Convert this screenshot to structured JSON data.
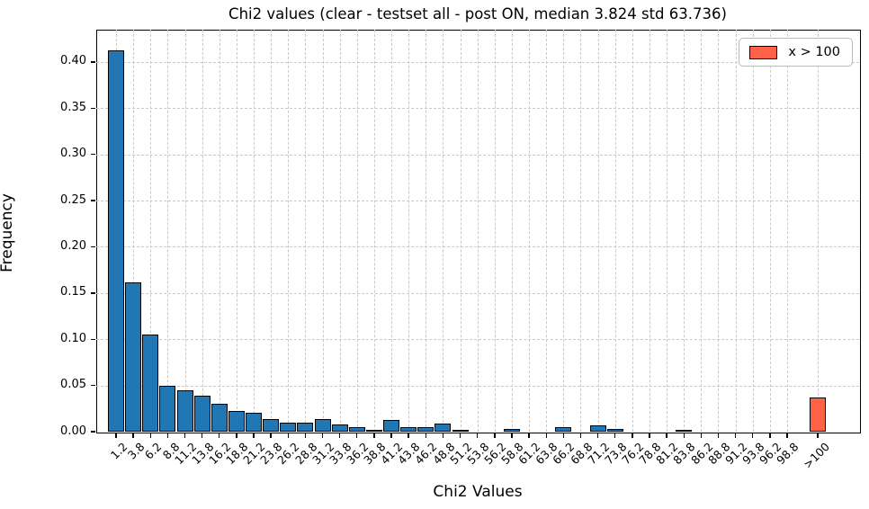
{
  "chart_data": {
    "type": "bar",
    "subtype": "histogram",
    "title": "Chi2 values (clear - testset all - post ON, median 3.824 std 63.736)",
    "xlabel": "Chi2 Values",
    "ylabel": "Frequency",
    "categories": [
      "1.2",
      "3.8",
      "6.2",
      "8.8",
      "11.2",
      "13.8",
      "16.2",
      "18.8",
      "21.2",
      "23.8",
      "26.2",
      "28.8",
      "31.2",
      "33.8",
      "36.2",
      "38.8",
      "41.2",
      "43.8",
      "46.2",
      "48.8",
      "51.2",
      "53.8",
      "56.2",
      "58.8",
      "61.2",
      "63.8",
      "66.2",
      "68.8",
      "71.2",
      "73.8",
      "76.2",
      "78.8",
      "81.2",
      "83.8",
      "86.2",
      "88.8",
      "91.2",
      "93.8",
      "96.2",
      "98.8",
      ">100"
    ],
    "values": [
      0.413,
      0.162,
      0.105,
      0.05,
      0.045,
      0.039,
      0.03,
      0.022,
      0.02,
      0.014,
      0.01,
      0.01,
      0.014,
      0.008,
      0.005,
      0.002,
      0.013,
      0.005,
      0.005,
      0.009,
      0.002,
      0,
      0,
      0.003,
      0,
      0,
      0.005,
      0,
      0.007,
      0.003,
      0,
      0,
      0,
      0.002,
      0,
      0,
      0,
      0,
      0,
      0,
      0.037
    ],
    "ylim": [
      0,
      0.435
    ],
    "yticks": [
      0.0,
      0.05,
      0.1,
      0.15,
      0.2,
      0.25,
      0.3,
      0.35,
      0.4
    ],
    "grid": true,
    "legend_position": "upper right",
    "legend": {
      "label": "x > 100"
    },
    "colors": {
      "bar": "#2077b4",
      "bar_edge": "#000000",
      "highlight": "#ff6347",
      "grid": "#c9c9c9"
    },
    "highlight_category": ">100",
    "stats_shown_in_title": {
      "median": "3.824",
      "std": "63.736"
    }
  }
}
